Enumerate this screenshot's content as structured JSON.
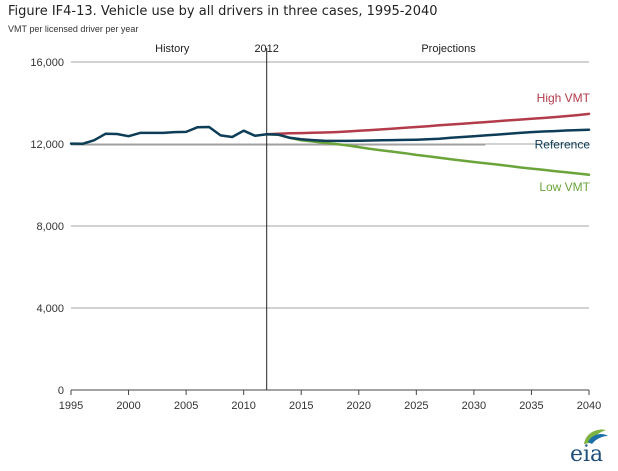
{
  "title": "Figure IF4-13. Vehicle use by all drivers in three cases, 1995-2040",
  "subtitle": "VMT per licensed driver  per year",
  "logo_text": "eia",
  "colors": {
    "history_reference": "#0e3d57",
    "high": "#b33c4a",
    "low": "#6aa43a",
    "grid": "#a6a6a6",
    "axis": "#444444"
  },
  "chart_data": {
    "type": "line",
    "xlim": [
      1995,
      2040
    ],
    "ylim": [
      0,
      16000
    ],
    "x_ticks": [
      1995,
      2000,
      2005,
      2010,
      2015,
      2020,
      2025,
      2030,
      2035,
      2040
    ],
    "y_ticks": [
      {
        "value": 0,
        "label": "0"
      },
      {
        "value": 4000,
        "label": "4,000"
      },
      {
        "value": 8000,
        "label": "8,000"
      },
      {
        "value": 12000,
        "label": "12,000"
      },
      {
        "value": 16000,
        "label": "16,000"
      }
    ],
    "grid": true,
    "divider": {
      "x": 2012,
      "label": "2012"
    },
    "region_labels": {
      "left": "History",
      "right": "Projections"
    },
    "reference_line": {
      "x": [
        1995,
        2031
      ],
      "y": 11950
    },
    "series": [
      {
        "name": "High VMT",
        "color": "#b33c4a",
        "x": [
          2012,
          2013,
          2014,
          2015,
          2016,
          2017,
          2018,
          2019,
          2020,
          2021,
          2022,
          2023,
          2024,
          2025,
          2026,
          2027,
          2028,
          2029,
          2030,
          2031,
          2032,
          2033,
          2034,
          2035,
          2036,
          2037,
          2038,
          2039,
          2040
        ],
        "y": [
          12480,
          12500,
          12520,
          12530,
          12550,
          12560,
          12580,
          12610,
          12650,
          12680,
          12710,
          12750,
          12790,
          12830,
          12870,
          12910,
          12950,
          12990,
          13030,
          13070,
          13110,
          13150,
          13190,
          13230,
          13270,
          13310,
          13360,
          13410,
          13470
        ]
      },
      {
        "name": "Reference",
        "color": "#0e3d57",
        "x": [
          1995,
          1996,
          1997,
          1998,
          1999,
          2000,
          2001,
          2002,
          2003,
          2004,
          2005,
          2006,
          2007,
          2008,
          2009,
          2010,
          2011,
          2012,
          2013,
          2014,
          2015,
          2016,
          2017,
          2018,
          2019,
          2020,
          2021,
          2022,
          2023,
          2024,
          2025,
          2026,
          2027,
          2028,
          2029,
          2030,
          2031,
          2032,
          2033,
          2034,
          2035,
          2036,
          2037,
          2038,
          2039,
          2040
        ],
        "y": [
          12020,
          12010,
          12180,
          12500,
          12490,
          12380,
          12540,
          12540,
          12540,
          12580,
          12590,
          12820,
          12830,
          12420,
          12340,
          12650,
          12400,
          12480,
          12460,
          12300,
          12230,
          12190,
          12160,
          12150,
          12150,
          12160,
          12170,
          12180,
          12190,
          12200,
          12210,
          12230,
          12260,
          12300,
          12340,
          12380,
          12420,
          12460,
          12500,
          12540,
          12580,
          12610,
          12630,
          12660,
          12680,
          12700
        ]
      },
      {
        "name": "Low VMT",
        "color": "#6aa43a",
        "x": [
          2012,
          2013,
          2014,
          2015,
          2016,
          2017,
          2018,
          2019,
          2020,
          2021,
          2022,
          2023,
          2024,
          2025,
          2026,
          2027,
          2028,
          2029,
          2030,
          2031,
          2032,
          2033,
          2034,
          2035,
          2036,
          2037,
          2038,
          2039,
          2040
        ],
        "y": [
          12480,
          12450,
          12300,
          12180,
          12120,
          12060,
          12000,
          11930,
          11850,
          11760,
          11690,
          11620,
          11550,
          11470,
          11400,
          11330,
          11260,
          11190,
          11120,
          11060,
          11000,
          10930,
          10860,
          10800,
          10740,
          10680,
          10620,
          10560,
          10500
        ]
      }
    ]
  }
}
